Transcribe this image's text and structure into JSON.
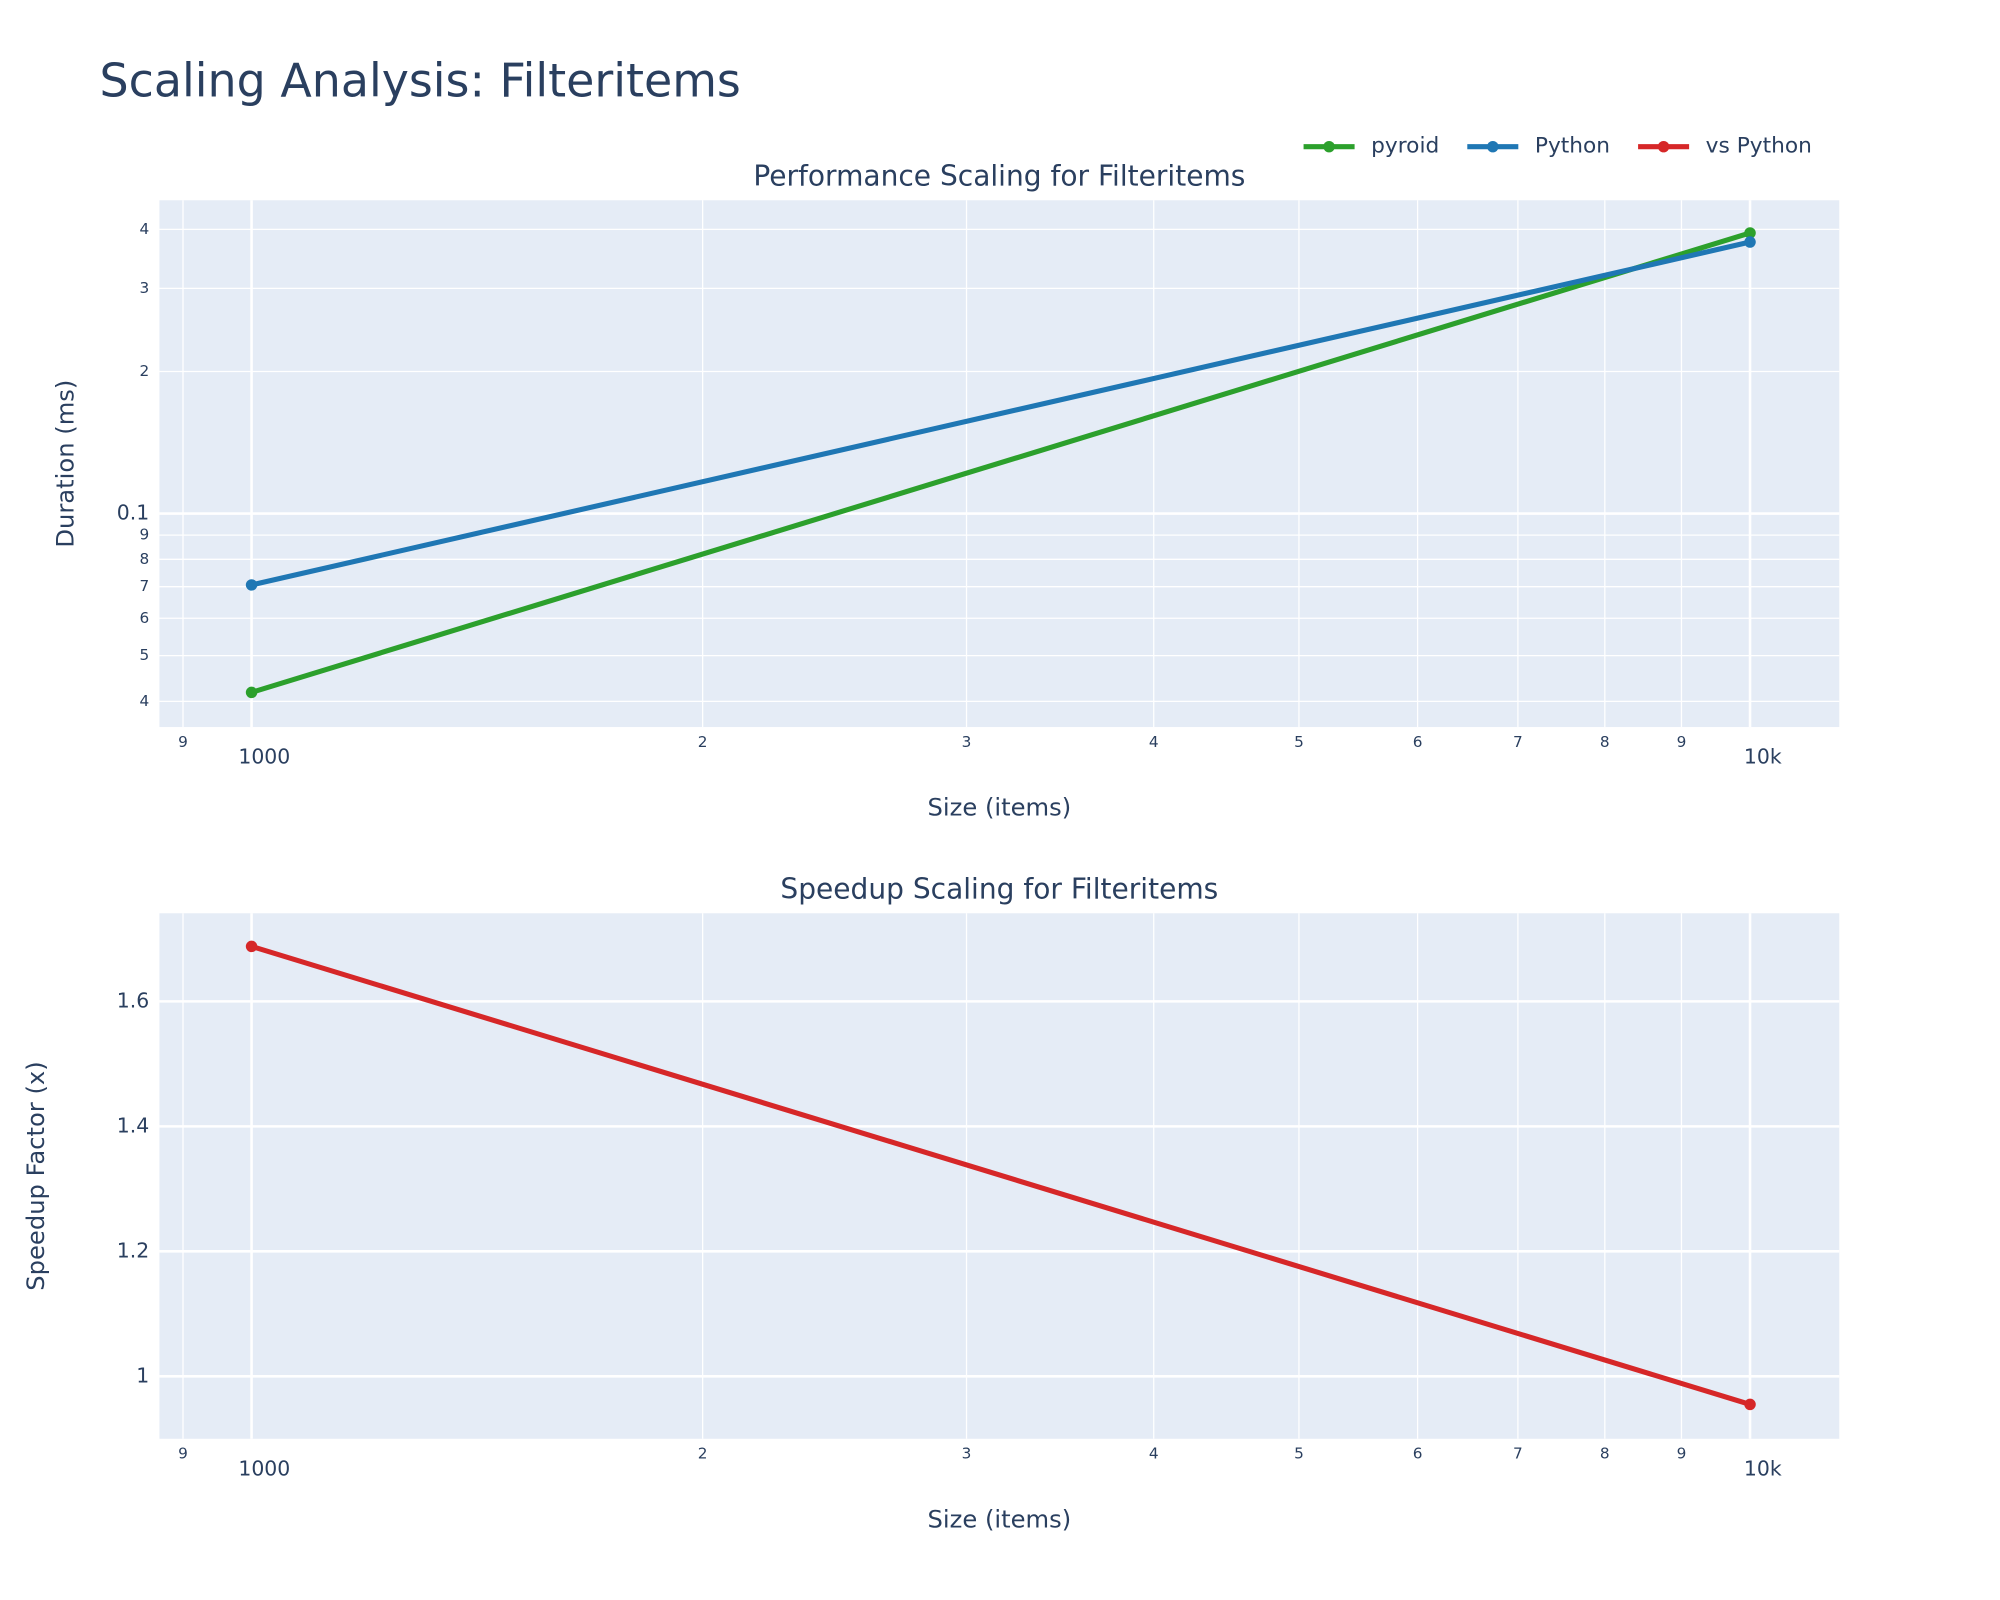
{
  "title": "Scaling Analysis: Filteritems",
  "legend": "top-right",
  "chart_data": [
    {
      "type": "line",
      "title": "Performance Scaling for Filteritems",
      "x_label": "Size (items)",
      "y_label": "Duration (ms)",
      "x": [
        1000,
        10000
      ],
      "series": [
        {
          "name": "pyroid",
          "color": "#2ca02c",
          "values": [
            0.0418,
            0.393
          ]
        },
        {
          "name": "Python",
          "color": "#1f77b4",
          "values": [
            0.0706,
            0.376
          ]
        }
      ],
      "xscale": "log",
      "yscale": "log",
      "grid": true,
      "xlim": [
        868,
        11470
      ],
      "ylim": [
        0.0353,
        0.461
      ],
      "xticks": [
        {
          "value": 900,
          "label": "9"
        },
        1000,
        {
          "value": 2000,
          "label": "2"
        },
        {
          "value": 3000,
          "label": "3"
        },
        {
          "value": 4000,
          "label": "4"
        },
        {
          "value": 5000,
          "label": "5"
        },
        {
          "value": 6000,
          "label": "6"
        },
        {
          "value": 7000,
          "label": "7"
        },
        {
          "value": 8000,
          "label": "8"
        },
        {
          "value": 9000,
          "label": "9"
        },
        {
          "value": 10000,
          "label": "10k"
        }
      ],
      "yticks": [
        {
          "value": 0.04,
          "label": "4"
        },
        {
          "value": 0.05,
          "label": "5"
        },
        {
          "value": 0.06,
          "label": "6"
        },
        {
          "value": 0.07,
          "label": "7"
        },
        {
          "value": 0.08,
          "label": "8"
        },
        {
          "value": 0.09,
          "label": "9"
        },
        0.1,
        {
          "value": 0.2,
          "label": "2"
        },
        {
          "value": 0.3,
          "label": "3"
        },
        {
          "value": 0.4,
          "label": "4"
        }
      ]
    },
    {
      "type": "line",
      "title": "Speedup Scaling for Filteritems",
      "x_label": "Size (items)",
      "y_label": "Speedup Factor (x)",
      "x": [
        1000,
        10000
      ],
      "series": [
        {
          "name": "vs Python",
          "color": "#d62728",
          "values": [
            1.688,
            0.955
          ]
        }
      ],
      "xscale": "log",
      "yscale": "linear",
      "grid": true,
      "xlim": [
        868,
        11470
      ],
      "ylim": [
        0.9,
        1.741
      ],
      "xticks": [
        {
          "value": 900,
          "label": "9"
        },
        1000,
        {
          "value": 2000,
          "label": "2"
        },
        {
          "value": 3000,
          "label": "3"
        },
        {
          "value": 4000,
          "label": "4"
        },
        {
          "value": 5000,
          "label": "5"
        },
        {
          "value": 6000,
          "label": "6"
        },
        {
          "value": 7000,
          "label": "7"
        },
        {
          "value": 8000,
          "label": "8"
        },
        {
          "value": 9000,
          "label": "9"
        },
        {
          "value": 10000,
          "label": "10k"
        }
      ],
      "yticks": [
        1,
        1.2,
        1.4,
        1.6
      ]
    }
  ]
}
